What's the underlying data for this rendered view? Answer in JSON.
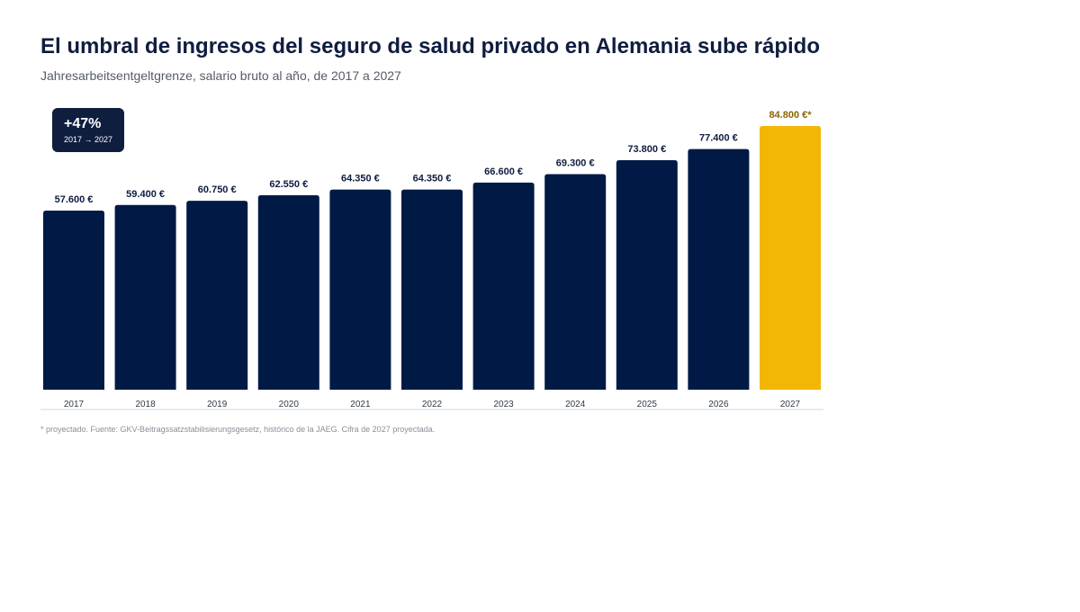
{
  "title": "El umbral de ingresos del seguro de salud privado en Alemania sube rápido",
  "subtitle": "Jahresarbeitsentgeltgrenze, salario bruto al año, de 2017 a 2027",
  "badge": {
    "value": "+47%",
    "range": "2017 → 2027"
  },
  "footnote": "* proyectado. Fuente: GKV-Beitragssatzstabilisierungsgesetz, histórico de la JAEG. Cifra de 2027 proyectada.",
  "colors": {
    "bar": "#001a45",
    "highlight": "#f2b705",
    "highlight_label": "#8a6500",
    "label": "#0f1d3f",
    "axis": "#d5d8de"
  },
  "chart_data": {
    "type": "bar",
    "categories": [
      "2017",
      "2018",
      "2019",
      "2020",
      "2021",
      "2022",
      "2023",
      "2024",
      "2025",
      "2026",
      "2027"
    ],
    "values": [
      57600,
      59400,
      60750,
      62550,
      64350,
      64350,
      66600,
      69300,
      73800,
      77400,
      84800
    ],
    "value_labels": [
      "57.600 €",
      "59.400 €",
      "60.750 €",
      "62.550 €",
      "64.350 €",
      "64.350 €",
      "66.600 €",
      "69.300 €",
      "73.800 €",
      "77.400 €",
      "84.800 €*"
    ],
    "projected": [
      false,
      false,
      false,
      false,
      false,
      false,
      false,
      false,
      false,
      false,
      true
    ],
    "ylim": [
      0,
      84800
    ],
    "grid": false
  }
}
